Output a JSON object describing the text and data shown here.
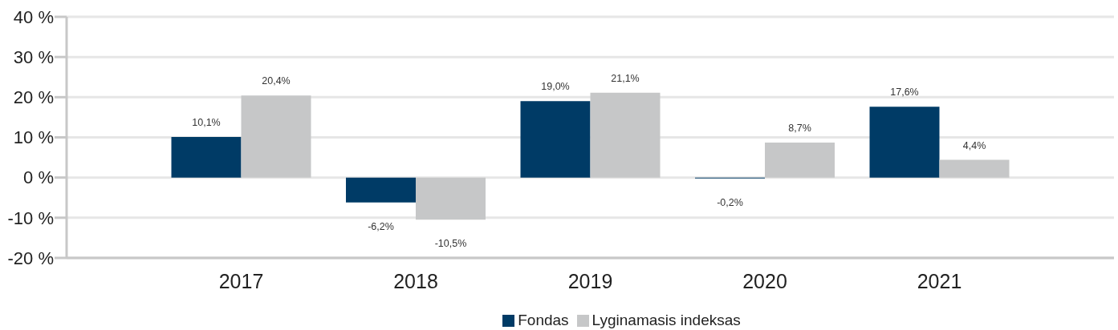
{
  "chart_data": {
    "type": "bar",
    "categories": [
      "2017",
      "2018",
      "2019",
      "2020",
      "2021"
    ],
    "series": [
      {
        "name": "Fondas",
        "color": "#003b66",
        "values": [
          10.1,
          -6.2,
          19.0,
          -0.2,
          17.6
        ],
        "value_labels": [
          "10,1%",
          "-6,2%",
          "19,0%",
          "-0,2%",
          "17,6%"
        ]
      },
      {
        "name": "Lyginamasis indeksas",
        "color": "#c6c7c8",
        "values": [
          20.4,
          -10.5,
          21.1,
          8.7,
          4.4
        ],
        "value_labels": [
          "20,4%",
          "-10,5%",
          "21,1%",
          "8,7%",
          "4,4%"
        ]
      }
    ],
    "ylim": [
      -20,
      40
    ],
    "yticks": [
      {
        "value": -20,
        "label": "-20 %"
      },
      {
        "value": -10,
        "label": "-10 %"
      },
      {
        "value": 0,
        "label": "0 %"
      },
      {
        "value": 10,
        "label": "10 %"
      },
      {
        "value": 20,
        "label": "20 %"
      },
      {
        "value": 30,
        "label": "30 %"
      },
      {
        "value": 40,
        "label": "40 %"
      }
    ],
    "grid": "y",
    "legend": "bottom"
  }
}
